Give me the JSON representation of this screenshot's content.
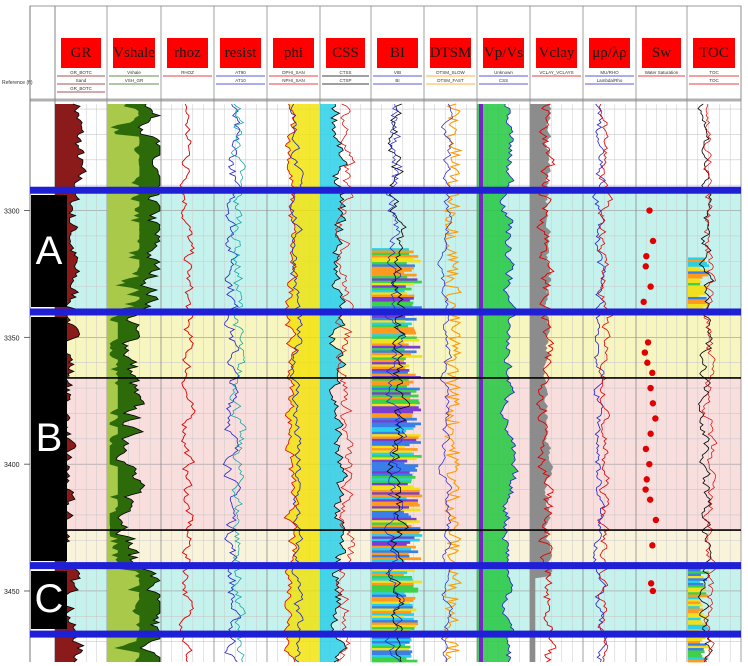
{
  "chart_data": {
    "type": "well_log",
    "depth_axis": {
      "label": "Reference (ft)",
      "range": [
        3258,
        3478
      ],
      "ticks": [
        {
          "label": "3300",
          "value": 3300
        },
        {
          "label": "3350",
          "value": 3350
        },
        {
          "label": "3400",
          "value": 3400
        },
        {
          "label": "3450",
          "value": 3450
        }
      ],
      "grid_step": 10
    },
    "zones": [
      {
        "label": "A",
        "top": 3292,
        "bottom": 3340
      },
      {
        "label": "B",
        "top": 3340,
        "bottom": 3440
      },
      {
        "label": "C",
        "top": 3440,
        "bottom": 3467
      }
    ],
    "zone_boundaries": [
      3292,
      3340,
      3440,
      3467
    ],
    "sub_boundaries": [
      3366,
      3426
    ],
    "intervals": [
      {
        "top": 3292,
        "bottom": 3340,
        "color": "#c6f2ee"
      },
      {
        "top": 3340,
        "bottom": 3366,
        "color": "#f7f5c0"
      },
      {
        "top": 3366,
        "bottom": 3426,
        "color": "#f9dede"
      },
      {
        "top": 3426,
        "bottom": 3440,
        "color": "#faf3dc"
      },
      {
        "top": 3440,
        "bottom": 3467,
        "color": "#c6f2ee"
      }
    ],
    "tracks": [
      {
        "title": "GR",
        "header_lines": [
          "GR_BOTC",
          "Sand",
          "GR_BOTC"
        ],
        "color": "#8b1a1a"
      },
      {
        "title": "Vshale",
        "header_lines": [
          "Vshale",
          "VSH_GR"
        ],
        "color": "#2d6a0a"
      },
      {
        "title": "rhoz",
        "header_lines": [
          "RHOZ"
        ],
        "color": "#e00000"
      },
      {
        "title": "resist",
        "header_lines": [
          "AT90",
          "AT10"
        ],
        "color": "#2222cc"
      },
      {
        "title": "phi",
        "header_lines": [
          "DPHI_SAN",
          "NPHI_SAN"
        ],
        "color": "#e00000"
      },
      {
        "title": "CSS",
        "header_lines": [
          "CTSS",
          "CTSP"
        ],
        "color": "#000000"
      },
      {
        "title": "BI",
        "header_lines": [
          "VIB",
          "BI"
        ],
        "color": "#2222cc"
      },
      {
        "title": "DTSM",
        "header_lines": [
          "DTSM_SLOW",
          "DTSM_FAST"
        ],
        "color": "#ff9900"
      },
      {
        "title": "Vp/Vs",
        "header_lines": [
          "Unknown",
          "CSS"
        ],
        "color": "#2222cc"
      },
      {
        "title": "Vclay",
        "header_lines": [
          "VCLAY_VCLAYS"
        ],
        "color": "#e00000"
      },
      {
        "title": "μρ/λρ",
        "header_lines": [
          "MU/RHO",
          "Lambda/Rho"
        ],
        "color": "#2222cc"
      },
      {
        "title": "Sw",
        "header_lines": [
          "Water Saturation"
        ],
        "color": "#e00000"
      },
      {
        "title": "TOC",
        "header_lines": [
          "TOC",
          "TOC"
        ],
        "color": "#e00000"
      }
    ],
    "sw_points": [
      3300,
      3312,
      3318,
      3322,
      3330,
      3336,
      3352,
      3356,
      3360,
      3364,
      3370,
      3376,
      3382,
      3388,
      3394,
      3400,
      3406,
      3410,
      3414,
      3422,
      3432,
      3447,
      3450
    ]
  }
}
